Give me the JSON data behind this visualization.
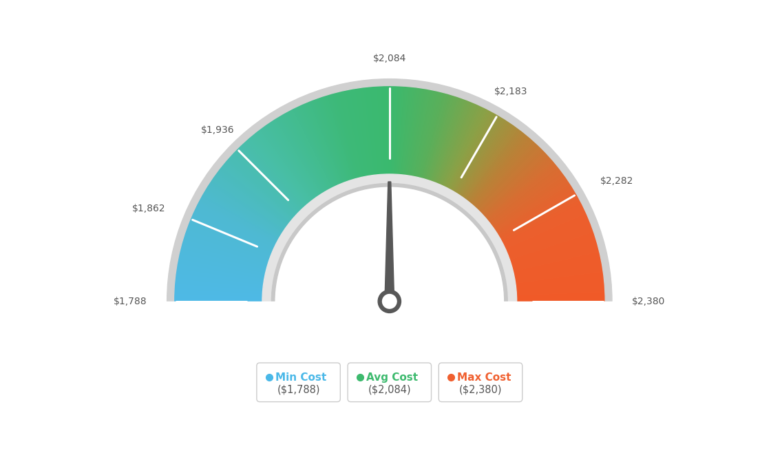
{
  "min_val": 1788,
  "max_val": 2380,
  "avg_val": 2084,
  "tick_labels": [
    "$1,788",
    "$1,862",
    "$1,936",
    "$2,084",
    "$2,183",
    "$2,282",
    "$2,380"
  ],
  "tick_values": [
    1788,
    1862,
    1936,
    2084,
    2183,
    2282,
    2380
  ],
  "legend": [
    {
      "label": "Min Cost",
      "value": "($1,788)",
      "color": "#4ab8e8"
    },
    {
      "label": "Avg Cost",
      "value": "($2,084)",
      "color": "#3dba6e"
    },
    {
      "label": "Max Cost",
      "value": "($2,380)",
      "color": "#f06030"
    }
  ],
  "background_color": "#ffffff",
  "needle_color": "#585858",
  "color_stops": [
    [
      0.0,
      [
        78,
        185,
        230
      ]
    ],
    [
      0.15,
      [
        78,
        185,
        210
      ]
    ],
    [
      0.28,
      [
        72,
        190,
        165
      ]
    ],
    [
      0.42,
      [
        61,
        185,
        120
      ]
    ],
    [
      0.5,
      [
        58,
        185,
        110
      ]
    ],
    [
      0.58,
      [
        90,
        175,
        90
      ]
    ],
    [
      0.65,
      [
        140,
        160,
        70
      ]
    ],
    [
      0.72,
      [
        185,
        130,
        55
      ]
    ],
    [
      0.78,
      [
        215,
        110,
        50
      ]
    ],
    [
      0.85,
      [
        235,
        95,
        45
      ]
    ],
    [
      1.0,
      [
        240,
        90,
        40
      ]
    ]
  ]
}
